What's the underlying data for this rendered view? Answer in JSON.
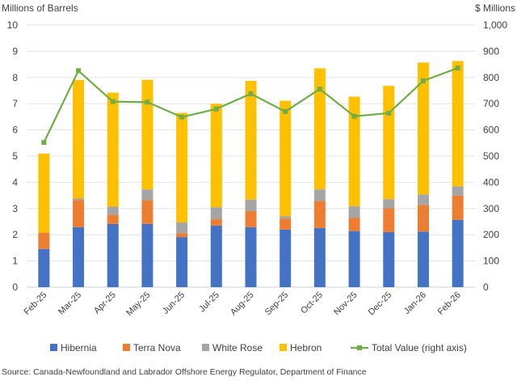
{
  "chart_data": {
    "type": "bar",
    "stacked": true,
    "categories": [
      "Feb-25",
      "Mar-25",
      "Apr-25",
      "May-25",
      "Jun-25",
      "Jul-25",
      "Aug-25",
      "Sep-25",
      "Oct-25",
      "Nov-25",
      "Dec-25",
      "Jan-26",
      "Feb-26"
    ],
    "ylabel_left": "Millions of Barrels",
    "ylabel_right": "$ Millions",
    "ylim_left": [
      0,
      10
    ],
    "ylim_right": [
      0,
      1000
    ],
    "yticks_left": [
      "0",
      "1",
      "2",
      "3",
      "4",
      "5",
      "6",
      "7",
      "8",
      "9",
      "10"
    ],
    "yticks_right": [
      "0",
      "100",
      "200",
      "300",
      "400",
      "500",
      "600",
      "700",
      "800",
      "900",
      "1,000"
    ],
    "grid": true,
    "legend_position": "bottom",
    "series": [
      {
        "name": "Hibernia",
        "color": "#4472C4",
        "axis": "left",
        "kind": "bar",
        "values": [
          1.46,
          2.29,
          2.41,
          2.41,
          1.91,
          2.35,
          2.29,
          2.2,
          2.26,
          2.14,
          2.1,
          2.12,
          2.57
        ]
      },
      {
        "name": "Terra Nova",
        "color": "#ED7D31",
        "axis": "left",
        "kind": "bar",
        "values": [
          0.62,
          1.03,
          0.35,
          0.91,
          0.15,
          0.24,
          0.61,
          0.41,
          1.03,
          0.5,
          0.91,
          1.02,
          0.92
        ]
      },
      {
        "name": "White Rose",
        "color": "#A5A5A5",
        "axis": "left",
        "kind": "bar",
        "values": [
          0.0,
          0.06,
          0.31,
          0.41,
          0.41,
          0.46,
          0.44,
          0.09,
          0.44,
          0.45,
          0.35,
          0.4,
          0.36
        ]
      },
      {
        "name": "Hebron",
        "color": "#FFC000",
        "axis": "left",
        "kind": "bar",
        "values": [
          3.02,
          4.53,
          4.35,
          4.18,
          4.18,
          3.95,
          4.53,
          4.41,
          4.62,
          4.18,
          4.32,
          5.03,
          4.78
        ]
      },
      {
        "name": "Total Value (right axis)",
        "color": "#70AD47",
        "axis": "right",
        "kind": "line",
        "values": [
          552,
          826,
          708,
          706,
          649,
          680,
          738,
          670,
          756,
          652,
          664,
          787,
          836
        ]
      }
    ],
    "source": "Source: Canada-Newfoundland and Labrador Offshore Energy Regulator, Department of Finance"
  }
}
